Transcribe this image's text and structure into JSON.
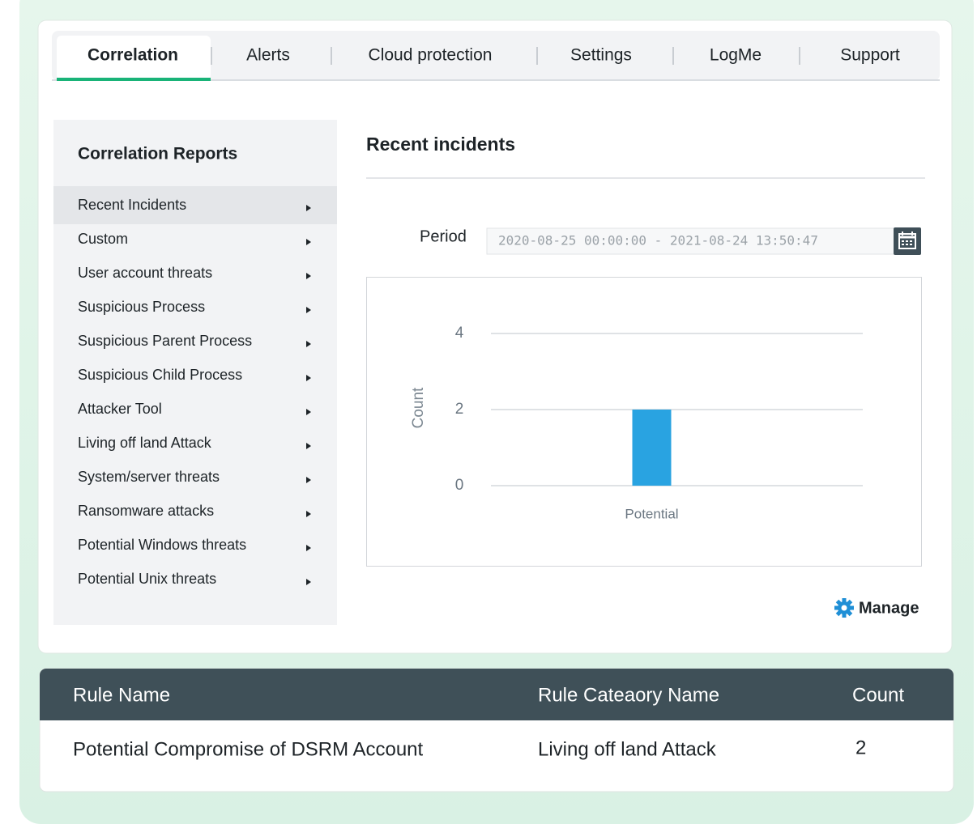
{
  "tabs": [
    "Correlation",
    "Alerts",
    "Cloud protection",
    "Settings",
    "LogMe",
    "Support"
  ],
  "sidebar": {
    "title": "Correlation Reports",
    "items": [
      "Recent Incidents",
      "Custom",
      "User account threats",
      "Suspicious Process",
      "Suspicious Parent Process",
      "Suspicious Child Process",
      "Attacker Tool",
      "Living off land Attack",
      "System/server threats",
      "Ransomware attacks",
      "Potential Windows threats",
      "Potential Unix threats"
    ]
  },
  "main": {
    "title": "Recent incidents",
    "period_label": "Period",
    "period_value": "2020-08-25 00:00:00 - 2021-08-24 13:50:47",
    "manage": "Manage"
  },
  "chart_data": {
    "type": "bar",
    "y_label": "Count",
    "categories": [
      "Potential"
    ],
    "values": [
      2
    ],
    "color": "#29a3e1",
    "ylim": [
      0,
      4
    ],
    "yticks": [
      0,
      2,
      4
    ],
    "grid": true
  },
  "table": {
    "headers": [
      "Rule Name",
      "Rule Cateaory Name",
      "Count"
    ],
    "rows": [
      [
        "Potential Compromise of DSRM Account",
        "Living off land Attack",
        2
      ]
    ]
  }
}
